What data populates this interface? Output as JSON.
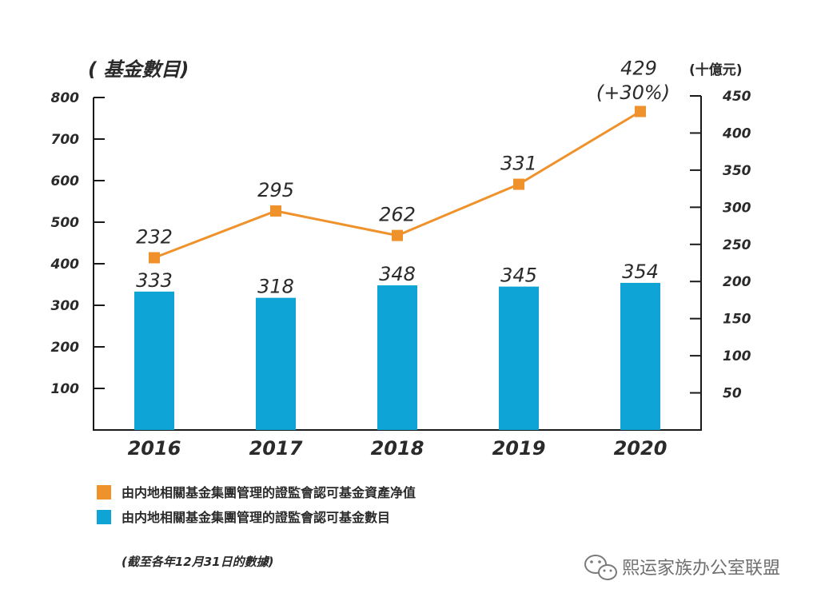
{
  "chart_data": {
    "type": "bar+line",
    "categories": [
      "2016",
      "2017",
      "2018",
      "2019",
      "2020"
    ],
    "series": [
      {
        "name": "由内地相關基金集團管理的證監會認可基金數目",
        "kind": "bar",
        "axis": "left",
        "color": "#0ea5d6",
        "values": [
          333,
          318,
          348,
          345,
          354
        ],
        "labels": [
          "333",
          "318",
          "348",
          "345",
          "354"
        ]
      },
      {
        "name": "由内地相關基金集團管理的證監會認可基金資產净值",
        "kind": "line",
        "axis": "right",
        "color": "#f0922b",
        "values": [
          232,
          295,
          262,
          331,
          429
        ],
        "labels": [
          "232",
          "295",
          "262",
          "331",
          "429"
        ]
      }
    ],
    "left_axis": {
      "title": "( 基金數目)",
      "ylim": [
        0,
        800
      ],
      "ticks": [
        100,
        200,
        300,
        400,
        500,
        600,
        700,
        800
      ]
    },
    "right_axis": {
      "title": "(十億元)",
      "ylim": [
        0,
        450
      ],
      "ticks": [
        50,
        100,
        150,
        200,
        250,
        300,
        350,
        400,
        450
      ]
    },
    "annotation": "(+30%)",
    "note": "(截至各年12月31日的數據)",
    "legend_position": "bottom-left"
  },
  "watermark": {
    "text": "熙运家族办公室联盟",
    "icon": "wechat-icon"
  }
}
